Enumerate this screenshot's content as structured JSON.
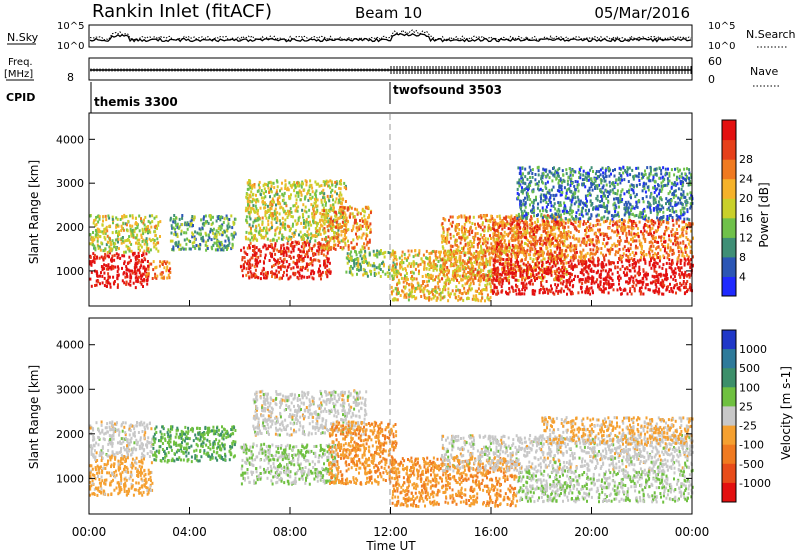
{
  "header": {
    "title": "Rankin Inlet (fitACF)",
    "beam": "Beam 10",
    "date": "05/Mar/2016"
  },
  "top_panels": {
    "nsky_label": "N.Sky",
    "nsky_ticks": [
      "10^5",
      "10^0"
    ],
    "nsearch_label": "N.Search",
    "nsearch_ticks": [
      "10^5",
      "10^0"
    ],
    "freq_label": "Freq.",
    "freq_unit": "[MHz]",
    "freq_ticks": [
      "8"
    ],
    "nave_label": "Nave",
    "nave_ticks": [
      "60",
      "0"
    ],
    "cpid_label": "CPID",
    "cpid_programs": [
      {
        "name": "themis 3300",
        "start_hour": 0
      },
      {
        "name": "twofsound 3503",
        "start_hour": 12
      }
    ]
  },
  "chart_data": [
    {
      "type": "heatmap",
      "name": "power",
      "ylabel": "Slant Range [km]",
      "y_ticks": [
        1000,
        2000,
        3000,
        4000
      ],
      "ylim": [
        200,
        4600
      ],
      "xlim": [
        0,
        24
      ],
      "colorbar": {
        "label": "Power [dB]",
        "ticks": [
          4,
          8,
          12,
          16,
          20,
          24,
          28
        ],
        "colors": [
          "#1f2aff",
          "#2b56b5",
          "#3f8f76",
          "#6fc14a",
          "#c9d02a",
          "#f5b22a",
          "#f07a20",
          "#e6401a",
          "#e31010"
        ]
      },
      "scatter_regions": [
        {
          "t0": 0.0,
          "t1": 2.3,
          "r0": 650,
          "r1": 1450,
          "value": 28
        },
        {
          "t0": 0.0,
          "t1": 2.8,
          "r0": 1450,
          "r1": 2300,
          "value": 16
        },
        {
          "t0": 2.2,
          "t1": 3.2,
          "r0": 850,
          "r1": 1250,
          "value": 22
        },
        {
          "t0": 3.2,
          "t1": 5.8,
          "r0": 1500,
          "r1": 2300,
          "value": 12
        },
        {
          "t0": 6.0,
          "t1": 9.6,
          "r0": 850,
          "r1": 1700,
          "value": 26
        },
        {
          "t0": 6.2,
          "t1": 10.2,
          "r0": 1700,
          "r1": 3100,
          "value": 16
        },
        {
          "t0": 9.2,
          "t1": 11.2,
          "r0": 1500,
          "r1": 2500,
          "value": 20
        },
        {
          "t0": 10.2,
          "t1": 12.2,
          "r0": 900,
          "r1": 1500,
          "value": 14
        },
        {
          "t0": 12.0,
          "t1": 16.0,
          "r0": 350,
          "r1": 1500,
          "value": 18
        },
        {
          "t0": 14.0,
          "t1": 19.0,
          "r0": 800,
          "r1": 2300,
          "value": 20
        },
        {
          "t0": 16.0,
          "t1": 24.0,
          "r0": 500,
          "r1": 1300,
          "value": 28
        },
        {
          "t0": 16.0,
          "t1": 24.0,
          "r0": 1300,
          "r1": 2200,
          "value": 22
        },
        {
          "t0": 17.0,
          "t1": 24.0,
          "r0": 2200,
          "r1": 3400,
          "value": 10
        }
      ]
    },
    {
      "type": "heatmap",
      "name": "velocity",
      "ylabel": "Slant Range [km]",
      "y_ticks": [
        1000,
        2000,
        3000,
        4000
      ],
      "ylim": [
        200,
        4600
      ],
      "xlim": [
        0,
        24
      ],
      "x_ticks": [
        "00:00",
        "04:00",
        "08:00",
        "12:00",
        "16:00",
        "20:00",
        "00:00"
      ],
      "xlabel": "Time UT",
      "colorbar": {
        "label": "Velocity [m s-1]",
        "ticks": [
          1000,
          500,
          100,
          25,
          -25,
          -100,
          -500,
          -1000
        ],
        "colors": [
          "#2038c8",
          "#2e7a9a",
          "#3c8f6a",
          "#6fc040",
          "#c8c8c8",
          "#f5a030",
          "#f07a20",
          "#e84c1a",
          "#e31010"
        ]
      },
      "scatter_regions": [
        {
          "t0": 0.0,
          "t1": 2.5,
          "r0": 1500,
          "r1": 2300,
          "value": 0
        },
        {
          "t0": 0.0,
          "t1": 2.5,
          "r0": 650,
          "r1": 1500,
          "value": -200
        },
        {
          "t0": 2.5,
          "t1": 5.8,
          "r0": 1400,
          "r1": 2200,
          "value": 300
        },
        {
          "t0": 6.0,
          "t1": 9.8,
          "r0": 900,
          "r1": 1800,
          "value": 100
        },
        {
          "t0": 6.5,
          "t1": 11.0,
          "r0": 2000,
          "r1": 3000,
          "value": 0
        },
        {
          "t0": 9.5,
          "t1": 12.2,
          "r0": 900,
          "r1": 2300,
          "value": -300
        },
        {
          "t0": 12.0,
          "t1": 17.0,
          "r0": 400,
          "r1": 1500,
          "value": -300
        },
        {
          "t0": 14.0,
          "t1": 24.0,
          "r0": 1200,
          "r1": 2000,
          "value": 0
        },
        {
          "t0": 17.0,
          "t1": 24.0,
          "r0": 500,
          "r1": 1200,
          "value": 80
        },
        {
          "t0": 18.0,
          "t1": 24.0,
          "r0": 1800,
          "r1": 2400,
          "value": -150
        }
      ]
    }
  ]
}
